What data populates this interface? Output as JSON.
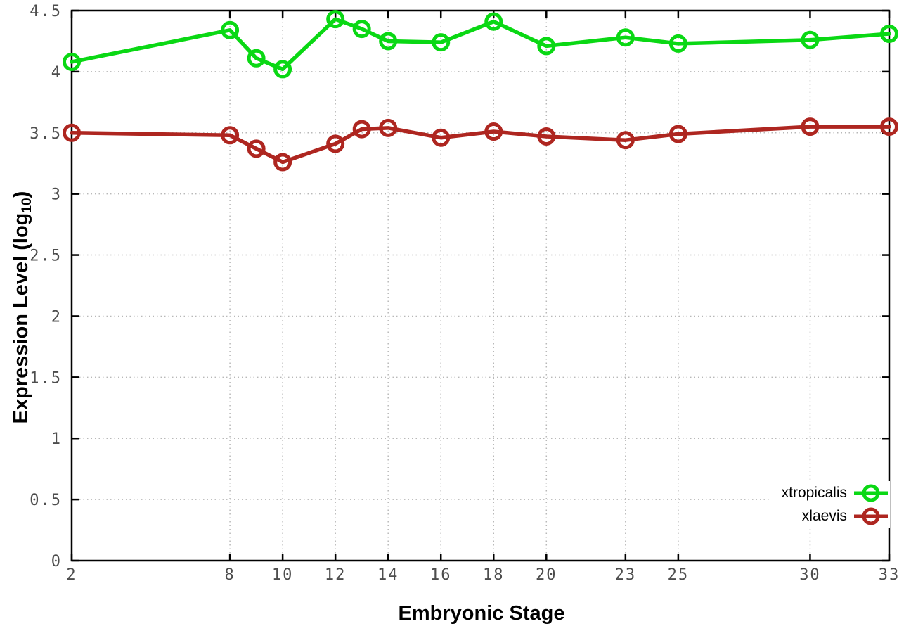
{
  "chart_data": {
    "type": "line",
    "title": "",
    "xlabel": "Embryonic Stage",
    "ylabel": "Expression Level (log10)",
    "ylabel_parts": [
      "Expression Level (log",
      "10",
      ")"
    ],
    "x": [
      2,
      8,
      9,
      10,
      12,
      13,
      14,
      16,
      18,
      20,
      23,
      25,
      30,
      33
    ],
    "series": [
      {
        "name": "xtropicalis",
        "color": "#0ad814",
        "values": [
          4.08,
          4.34,
          4.11,
          4.02,
          4.43,
          4.35,
          4.25,
          4.24,
          4.41,
          4.21,
          4.28,
          4.23,
          4.26,
          4.31
        ]
      },
      {
        "name": "xlaevis",
        "color": "#ae2620",
        "values": [
          3.5,
          3.48,
          3.37,
          3.26,
          3.41,
          3.53,
          3.54,
          3.46,
          3.51,
          3.47,
          3.44,
          3.49,
          3.55,
          3.55
        ]
      }
    ],
    "xlim": [
      2,
      33
    ],
    "ylim": [
      0,
      4.5
    ],
    "xticks": [
      2,
      8,
      10,
      12,
      14,
      16,
      18,
      20,
      23,
      25,
      30,
      33
    ],
    "yticks": [
      0,
      0.5,
      1,
      1.5,
      2,
      2.5,
      3,
      3.5,
      4,
      4.5
    ],
    "grid": true,
    "legend_position": "bottom-right",
    "marker": "open-circle"
  },
  "style": {
    "background": "#ffffff",
    "border_color": "#000000",
    "grid_color": "#b8b8b8",
    "tick_label_color": "#4d4d4d"
  }
}
